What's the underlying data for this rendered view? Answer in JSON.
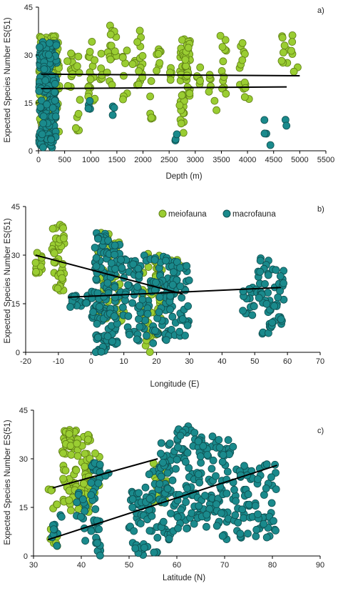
{
  "colors": {
    "meio": "#9acd32",
    "macro": "#1a8a8c",
    "meio_edge": "#5f7f14",
    "macro_edge": "#0e4f50"
  },
  "legend": {
    "meio_label": "meiofauna",
    "macro_label": "macrofauna"
  },
  "chart_data": [
    {
      "type": "scatter",
      "panel_label": "a)",
      "xlabel": "Depth (m)",
      "ylabel": "Expected Species Number  ES(51)",
      "xlim": [
        0,
        5500
      ],
      "ylim": [
        0,
        45
      ],
      "xticks": [
        0,
        500,
        1000,
        1500,
        2000,
        2500,
        3000,
        3500,
        4000,
        4500,
        5000,
        5500
      ],
      "yticks": [
        0,
        15,
        30,
        45
      ],
      "legend": false,
      "series": [
        {
          "group": "meio",
          "clusters": [
            {
              "x": [
                10,
                400
              ],
              "y": [
                5,
                36
              ],
              "n": 160
            },
            {
              "x": [
                550,
                650
              ],
              "y": [
                18,
                33
              ],
              "n": 10
            },
            {
              "x": [
                700,
                800
              ],
              "y": [
                5,
                30
              ],
              "n": 10
            },
            {
              "x": [
                950,
                1100
              ],
              "y": [
                14,
                36
              ],
              "n": 16
            },
            {
              "x": [
                1180,
                1220
              ],
              "y": [
                22,
                31
              ],
              "n": 5
            },
            {
              "x": [
                1300,
                1500
              ],
              "y": [
                20,
                40
              ],
              "n": 18
            },
            {
              "x": [
                1600,
                1700
              ],
              "y": [
                16,
                32
              ],
              "n": 8
            },
            {
              "x": [
                1800,
                2000
              ],
              "y": [
                20,
                39
              ],
              "n": 18
            },
            {
              "x": [
                2100,
                2200
              ],
              "y": [
                10,
                25
              ],
              "n": 6
            },
            {
              "x": [
                2250,
                2400
              ],
              "y": [
                24,
                32
              ],
              "n": 8
            },
            {
              "x": [
                2500,
                2550
              ],
              "y": [
                22,
                30
              ],
              "n": 5
            },
            {
              "x": [
                2700,
                2800
              ],
              "y": [
                5,
                35
              ],
              "n": 30
            },
            {
              "x": [
                2800,
                2900
              ],
              "y": [
                17,
                35
              ],
              "n": 30
            },
            {
              "x": [
                3000,
                3100
              ],
              "y": [
                20,
                28
              ],
              "n": 6
            },
            {
              "x": [
                3250,
                3300
              ],
              "y": [
                18,
                24
              ],
              "n": 5
            },
            {
              "x": [
                3350,
                3600
              ],
              "y": [
                12,
                39
              ],
              "n": 14
            },
            {
              "x": [
                3850,
                4050
              ],
              "y": [
                16,
                37
              ],
              "n": 14
            },
            {
              "x": [
                4650,
                5000
              ],
              "y": [
                24,
                37
              ],
              "n": 14
            }
          ]
        },
        {
          "group": "macro",
          "clusters": [
            {
              "x": [
                10,
                350
              ],
              "y": [
                1,
                35
              ],
              "n": 170
            },
            {
              "x": [
                900,
                1000
              ],
              "y": [
                13,
                16
              ],
              "n": 4
            },
            {
              "x": [
                1400,
                1450
              ],
              "y": [
                10,
                16
              ],
              "n": 3
            },
            {
              "x": [
                2600,
                2650
              ],
              "y": [
                2,
                6
              ],
              "n": 3
            },
            {
              "x": [
                4300,
                4450
              ],
              "y": [
                1,
                11
              ],
              "n": 4
            },
            {
              "x": [
                4700,
                4750
              ],
              "y": [
                7,
                10
              ],
              "n": 2
            }
          ]
        }
      ],
      "trendlines": [
        {
          "x": [
            50,
            5000
          ],
          "y": [
            24,
            23.5
          ]
        },
        {
          "x": [
            50,
            4750
          ],
          "y": [
            19.5,
            20
          ]
        }
      ]
    },
    {
      "type": "scatter",
      "panel_label": "b)",
      "xlabel": "Longitude (E)",
      "ylabel": "Expected Species Number  ES(51)",
      "xlim": [
        -20,
        70
      ],
      "ylim": [
        0,
        45
      ],
      "xticks": [
        -20,
        -10,
        0,
        10,
        20,
        30,
        40,
        50,
        60,
        70
      ],
      "yticks": [
        0,
        15,
        30,
        45
      ],
      "legend": true,
      "legend_position": "top-center",
      "series": [
        {
          "group": "meio",
          "clusters": [
            {
              "x": [
                -17,
                -15
              ],
              "y": [
                24,
                31
              ],
              "n": 14
            },
            {
              "x": [
                -12,
                -8
              ],
              "y": [
                19,
                40
              ],
              "n": 40
            },
            {
              "x": [
                2,
                6
              ],
              "y": [
                10,
                37
              ],
              "n": 40
            },
            {
              "x": [
                6,
                10
              ],
              "y": [
                8,
                35
              ],
              "n": 25
            },
            {
              "x": [
                15,
                22
              ],
              "y": [
                5,
                33
              ],
              "n": 40
            },
            {
              "x": [
                23,
                27
              ],
              "y": [
                14,
                30
              ],
              "n": 15
            },
            {
              "x": [
                16,
                18
              ],
              "y": [
                0,
                15
              ],
              "n": 10
            }
          ]
        },
        {
          "group": "macro",
          "clusters": [
            {
              "x": [
                -7,
                -1
              ],
              "y": [
                14,
                18
              ],
              "n": 18
            },
            {
              "x": [
                0,
                2
              ],
              "y": [
                10,
                20
              ],
              "n": 12
            },
            {
              "x": [
                1,
                5
              ],
              "y": [
                0,
                37
              ],
              "n": 80
            },
            {
              "x": [
                5,
                9
              ],
              "y": [
                2,
                35
              ],
              "n": 50
            },
            {
              "x": [
                9,
                14
              ],
              "y": [
                5,
                32
              ],
              "n": 35
            },
            {
              "x": [
                14,
                19
              ],
              "y": [
                0,
                30
              ],
              "n": 40
            },
            {
              "x": [
                19,
                24
              ],
              "y": [
                3,
                33
              ],
              "n": 45
            },
            {
              "x": [
                24,
                27
              ],
              "y": [
                5,
                28
              ],
              "n": 30
            },
            {
              "x": [
                27,
                30
              ],
              "y": [
                5,
                27
              ],
              "n": 25
            },
            {
              "x": [
                46,
                51
              ],
              "y": [
                11,
                20
              ],
              "n": 18
            },
            {
              "x": [
                51,
                55
              ],
              "y": [
                5,
                30
              ],
              "n": 30
            },
            {
              "x": [
                55,
                59
              ],
              "y": [
                8,
                26
              ],
              "n": 25
            }
          ]
        }
      ],
      "trendlines": [
        {
          "x": [
            -17,
            28
          ],
          "y": [
            30,
            18
          ]
        },
        {
          "x": [
            -7,
            58
          ],
          "y": [
            17,
            20
          ]
        }
      ]
    },
    {
      "type": "scatter",
      "panel_label": "c)",
      "xlabel": "Latitude (N)",
      "ylabel": "Expected Species Number  ES(51)",
      "xlim": [
        30,
        90
      ],
      "ylim": [
        0,
        45
      ],
      "xticks": [
        30,
        40,
        50,
        60,
        70,
        80,
        90
      ],
      "yticks": [
        0,
        15,
        30,
        45
      ],
      "legend": false,
      "series": [
        {
          "group": "meio",
          "clusters": [
            {
              "x": [
                33,
                35
              ],
              "y": [
                3,
                25
              ],
              "n": 12
            },
            {
              "x": [
                36,
                39
              ],
              "y": [
                14,
                39
              ],
              "n": 50
            },
            {
              "x": [
                39,
                42
              ],
              "y": [
                12,
                40
              ],
              "n": 50
            },
            {
              "x": [
                42,
                44
              ],
              "y": [
                18,
                32
              ],
              "n": 10
            },
            {
              "x": [
                55,
                58
              ],
              "y": [
                15,
                30
              ],
              "n": 25
            }
          ]
        },
        {
          "group": "macro",
          "clusters": [
            {
              "x": [
                33,
                36
              ],
              "y": [
                3,
                13
              ],
              "n": 10
            },
            {
              "x": [
                39,
                41
              ],
              "y": [
                3,
                22
              ],
              "n": 12
            },
            {
              "x": [
                42,
                44
              ],
              "y": [
                0,
                30
              ],
              "n": 40
            },
            {
              "x": [
                44,
                46
              ],
              "y": [
                24,
                27
              ],
              "n": 2
            },
            {
              "x": [
                50,
                53
              ],
              "y": [
                0,
                20
              ],
              "n": 30
            },
            {
              "x": [
                53,
                56
              ],
              "y": [
                1,
                28
              ],
              "n": 30
            },
            {
              "x": [
                56,
                60
              ],
              "y": [
                5,
                35
              ],
              "n": 55
            },
            {
              "x": [
                60,
                64
              ],
              "y": [
                8,
                41
              ],
              "n": 55
            },
            {
              "x": [
                64,
                68
              ],
              "y": [
                8,
                37
              ],
              "n": 50
            },
            {
              "x": [
                68,
                72
              ],
              "y": [
                5,
                37
              ],
              "n": 45
            },
            {
              "x": [
                72,
                76
              ],
              "y": [
                5,
                28
              ],
              "n": 35
            },
            {
              "x": [
                76,
                81
              ],
              "y": [
                5,
                29
              ],
              "n": 35
            }
          ]
        }
      ],
      "trendlines": [
        {
          "x": [
            34,
            56
          ],
          "y": [
            21,
            30
          ]
        },
        {
          "x": [
            33,
            81
          ],
          "y": [
            5,
            28
          ]
        }
      ]
    }
  ]
}
